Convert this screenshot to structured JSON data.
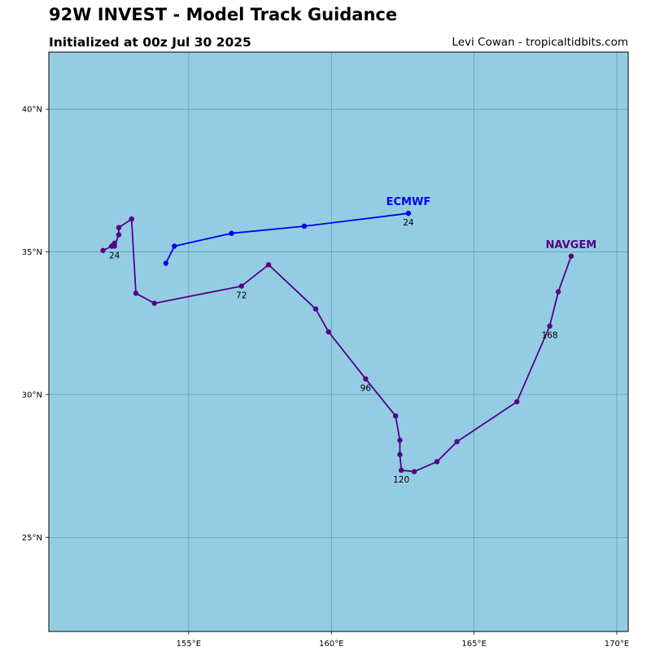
{
  "header": {
    "title": "92W INVEST - Model Track Guidance",
    "subtitle": "Initialized at 00z Jul 30 2025",
    "credit": "Levi Cowan - tropicaltidbits.com"
  },
  "colors": {
    "ocean": "#94cde3",
    "grid": "#4a6a78",
    "ECMWF": "#0000ee",
    "NAVGEM": "#550088"
  },
  "chart_data": {
    "type": "map-track",
    "xlim": [
      150.1,
      170.4
    ],
    "ylim": [
      21.7,
      42.0
    ],
    "xticks": [
      155,
      160,
      165,
      170
    ],
    "xtick_labels": [
      "155°E",
      "160°E",
      "165°E",
      "170°E"
    ],
    "yticks": [
      25,
      30,
      35,
      40
    ],
    "ytick_labels": [
      "25°N",
      "30°N",
      "35°N",
      "40°N"
    ],
    "grid": true,
    "series": [
      {
        "name": "ECMWF",
        "color": "#0000ee",
        "points": [
          [
            154.2,
            34.6
          ],
          [
            154.5,
            35.2
          ],
          [
            156.5,
            35.65
          ],
          [
            159.05,
            35.9
          ],
          [
            162.7,
            36.35
          ]
        ],
        "hour_labels": [
          {
            "hour": "24",
            "lon": 162.7,
            "lat": 36.35
          }
        ]
      },
      {
        "name": "NAVGEM",
        "color": "#550088",
        "points": [
          [
            152.0,
            35.05
          ],
          [
            152.3,
            35.2
          ],
          [
            152.4,
            35.3
          ],
          [
            152.4,
            35.2
          ],
          [
            152.55,
            35.6
          ],
          [
            152.55,
            35.85
          ],
          [
            153.0,
            36.15
          ],
          [
            153.15,
            33.55
          ],
          [
            153.8,
            33.2
          ],
          [
            156.85,
            33.8
          ],
          [
            157.8,
            34.55
          ],
          [
            159.45,
            33.0
          ],
          [
            159.9,
            32.2
          ],
          [
            161.2,
            30.55
          ],
          [
            162.25,
            29.25
          ],
          [
            162.4,
            28.4
          ],
          [
            162.4,
            27.9
          ],
          [
            162.45,
            27.35
          ],
          [
            162.9,
            27.3
          ],
          [
            163.7,
            27.65
          ],
          [
            164.4,
            28.35
          ],
          [
            166.5,
            29.75
          ],
          [
            167.65,
            32.4
          ],
          [
            167.95,
            33.6
          ],
          [
            168.4,
            34.85
          ]
        ],
        "hour_labels": [
          {
            "hour": "24",
            "lon": 152.4,
            "lat": 35.2
          },
          {
            "hour": "72",
            "lon": 156.85,
            "lat": 33.8
          },
          {
            "hour": "96",
            "lon": 161.2,
            "lat": 30.55
          },
          {
            "hour": "120",
            "lon": 162.45,
            "lat": 27.35
          },
          {
            "hour": "168",
            "lon": 167.65,
            "lat": 32.4
          }
        ]
      }
    ]
  }
}
